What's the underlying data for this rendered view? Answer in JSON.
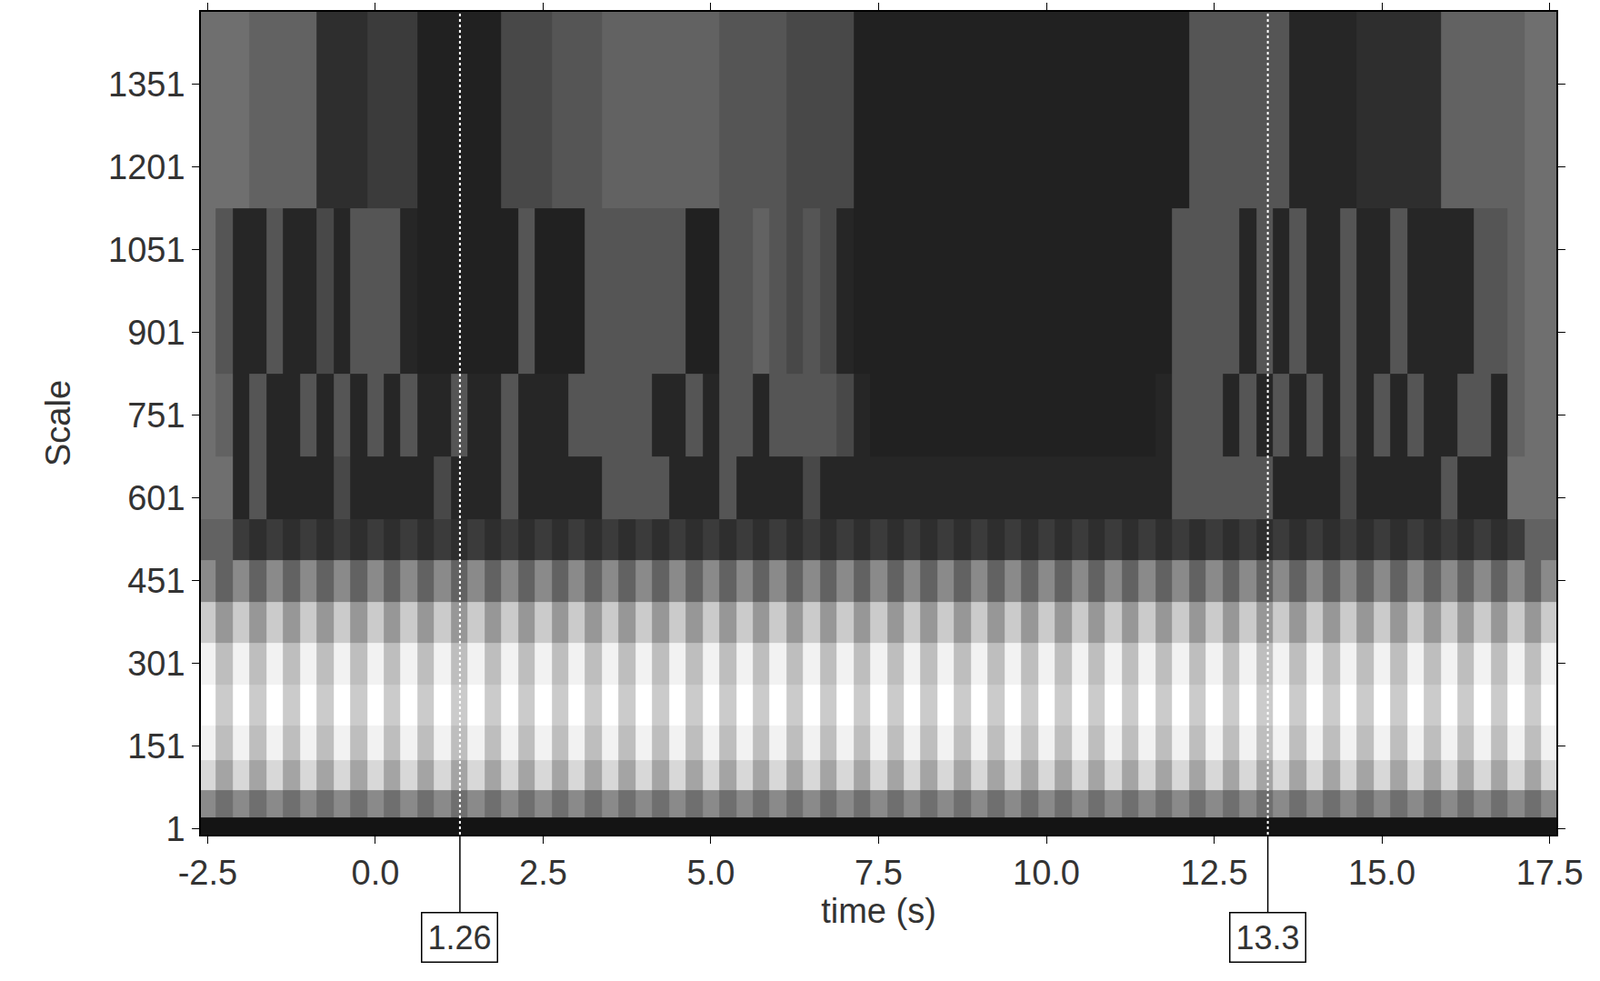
{
  "chart_data": {
    "type": "heatmap",
    "x_label": "time (s)",
    "y_label": "Scale",
    "x": [
      -2.5,
      -2.25,
      -2,
      -1.75,
      -1.5,
      -1.25,
      -1,
      -0.75,
      -0.5,
      -0.25,
      0,
      0.25,
      0.5,
      0.75,
      1,
      1.25,
      1.5,
      1.75,
      2,
      2.25,
      2.5,
      2.75,
      3,
      3.25,
      3.5,
      3.75,
      4,
      4.25,
      4.5,
      4.75,
      5,
      5.25,
      5.5,
      5.75,
      6,
      6.25,
      6.5,
      6.75,
      7,
      7.25,
      7.5,
      7.75,
      8,
      8.25,
      8.5,
      8.75,
      9,
      9.25,
      9.5,
      9.75,
      10,
      10.25,
      10.5,
      10.75,
      11,
      11.25,
      11.5,
      11.75,
      12,
      12.25,
      12.5,
      12.75,
      13,
      13.25,
      13.5,
      13.75,
      14,
      14.25,
      14.5,
      14.75,
      15,
      15.25,
      15.5,
      15.75,
      16,
      16.25,
      16.5,
      16.75,
      17,
      17.25,
      17.5
    ],
    "y": [
      1,
      40,
      100,
      150,
      225,
      300,
      375,
      450,
      525,
      600,
      750,
      900,
      1050,
      1200,
      1350,
      1450
    ],
    "z": [
      [
        0.05,
        0.05,
        0.05,
        0.05,
        0.05,
        0.05,
        0.05,
        0.05,
        0.05,
        0.05,
        0.05,
        0.05,
        0.05,
        0.05,
        0.05,
        0.05,
        0.05,
        0.05,
        0.05,
        0.05,
        0.05,
        0.05,
        0.05,
        0.05,
        0.05,
        0.05,
        0.05,
        0.05,
        0.05,
        0.05,
        0.05,
        0.05,
        0.05,
        0.05,
        0.05,
        0.05,
        0.05,
        0.05,
        0.05,
        0.05,
        0.05,
        0.05,
        0.05,
        0.05,
        0.05,
        0.05,
        0.05,
        0.05,
        0.05,
        0.05,
        0.05,
        0.05,
        0.05,
        0.05,
        0.05,
        0.05,
        0.05,
        0.05,
        0.05,
        0.05,
        0.05,
        0.05,
        0.05,
        0.05,
        0.05,
        0.05,
        0.05,
        0.05,
        0.05,
        0.05,
        0.05,
        0.05,
        0.05,
        0.05,
        0.05,
        0.05,
        0.05,
        0.05,
        0.05,
        0.05,
        0.05
      ],
      [
        0.5,
        0.4,
        0.5,
        0.4,
        0.5,
        0.4,
        0.5,
        0.4,
        0.5,
        0.4,
        0.5,
        0.4,
        0.5,
        0.4,
        0.5,
        0.4,
        0.5,
        0.4,
        0.5,
        0.4,
        0.5,
        0.4,
        0.5,
        0.4,
        0.5,
        0.4,
        0.5,
        0.4,
        0.5,
        0.4,
        0.5,
        0.4,
        0.5,
        0.4,
        0.5,
        0.4,
        0.5,
        0.4,
        0.5,
        0.4,
        0.5,
        0.4,
        0.5,
        0.4,
        0.5,
        0.4,
        0.5,
        0.4,
        0.5,
        0.4,
        0.5,
        0.4,
        0.5,
        0.4,
        0.5,
        0.4,
        0.5,
        0.4,
        0.5,
        0.4,
        0.5,
        0.4,
        0.5,
        0.4,
        0.5,
        0.4,
        0.5,
        0.4,
        0.5,
        0.4,
        0.5,
        0.4,
        0.5,
        0.4,
        0.5,
        0.4,
        0.5,
        0.4,
        0.5,
        0.4,
        0.5
      ],
      [
        0.8,
        0.6,
        0.8,
        0.6,
        0.8,
        0.6,
        0.8,
        0.6,
        0.8,
        0.6,
        0.8,
        0.6,
        0.8,
        0.6,
        0.8,
        0.6,
        0.8,
        0.6,
        0.8,
        0.6,
        0.8,
        0.6,
        0.8,
        0.6,
        0.8,
        0.6,
        0.8,
        0.6,
        0.8,
        0.6,
        0.8,
        0.6,
        0.8,
        0.6,
        0.8,
        0.6,
        0.8,
        0.6,
        0.8,
        0.6,
        0.8,
        0.6,
        0.8,
        0.6,
        0.8,
        0.6,
        0.8,
        0.6,
        0.8,
        0.6,
        0.8,
        0.6,
        0.8,
        0.6,
        0.8,
        0.6,
        0.8,
        0.6,
        0.8,
        0.6,
        0.8,
        0.6,
        0.8,
        0.6,
        0.8,
        0.6,
        0.8,
        0.6,
        0.8,
        0.6,
        0.8,
        0.6,
        0.8,
        0.6,
        0.8,
        0.6,
        0.8,
        0.6,
        0.8,
        0.6,
        0.8
      ],
      [
        0.9,
        0.7,
        0.9,
        0.7,
        0.9,
        0.7,
        0.9,
        0.7,
        0.9,
        0.7,
        0.9,
        0.7,
        0.9,
        0.7,
        0.9,
        0.7,
        0.9,
        0.7,
        0.9,
        0.7,
        0.9,
        0.7,
        0.9,
        0.7,
        0.9,
        0.7,
        0.9,
        0.7,
        0.9,
        0.7,
        0.9,
        0.7,
        0.9,
        0.7,
        0.9,
        0.7,
        0.9,
        0.7,
        0.9,
        0.7,
        0.9,
        0.7,
        0.9,
        0.7,
        0.9,
        0.7,
        0.9,
        0.7,
        0.9,
        0.7,
        0.9,
        0.7,
        0.9,
        0.7,
        0.9,
        0.7,
        0.9,
        0.7,
        0.9,
        0.7,
        0.9,
        0.7,
        0.9,
        0.7,
        0.9,
        0.7,
        0.9,
        0.7,
        0.9,
        0.7,
        0.9,
        0.7,
        0.9,
        0.7,
        0.9,
        0.7,
        0.9,
        0.7,
        0.9,
        0.7,
        0.9
      ],
      [
        0.95,
        0.75,
        0.95,
        0.75,
        0.95,
        0.75,
        0.95,
        0.75,
        0.95,
        0.75,
        0.95,
        0.75,
        0.95,
        0.75,
        0.95,
        0.75,
        0.95,
        0.75,
        0.95,
        0.75,
        0.95,
        0.75,
        0.95,
        0.75,
        0.95,
        0.75,
        0.95,
        0.75,
        0.95,
        0.75,
        0.95,
        0.75,
        0.95,
        0.75,
        0.95,
        0.75,
        0.95,
        0.75,
        0.95,
        0.75,
        0.95,
        0.75,
        0.95,
        0.75,
        0.95,
        0.75,
        0.95,
        0.75,
        0.95,
        0.75,
        0.95,
        0.75,
        0.95,
        0.75,
        0.95,
        0.75,
        0.95,
        0.75,
        0.95,
        0.75,
        0.95,
        0.75,
        0.95,
        0.75,
        0.95,
        0.75,
        0.95,
        0.75,
        0.95,
        0.75,
        0.95,
        0.75,
        0.95,
        0.75,
        0.95,
        0.75,
        0.95,
        0.75,
        0.95,
        0.75,
        0.95
      ],
      [
        0.9,
        0.7,
        0.9,
        0.7,
        0.9,
        0.7,
        0.9,
        0.7,
        0.9,
        0.7,
        0.9,
        0.7,
        0.9,
        0.7,
        0.9,
        0.7,
        0.9,
        0.7,
        0.9,
        0.7,
        0.9,
        0.7,
        0.9,
        0.7,
        0.9,
        0.7,
        0.9,
        0.7,
        0.9,
        0.7,
        0.9,
        0.7,
        0.9,
        0.7,
        0.9,
        0.7,
        0.9,
        0.7,
        0.9,
        0.7,
        0.9,
        0.7,
        0.9,
        0.7,
        0.9,
        0.7,
        0.9,
        0.7,
        0.9,
        0.7,
        0.9,
        0.7,
        0.9,
        0.7,
        0.9,
        0.7,
        0.9,
        0.7,
        0.9,
        0.7,
        0.9,
        0.7,
        0.9,
        0.7,
        0.9,
        0.7,
        0.9,
        0.7,
        0.9,
        0.7,
        0.9,
        0.7,
        0.9,
        0.7,
        0.9,
        0.7,
        0.9,
        0.7,
        0.9,
        0.7,
        0.9
      ],
      [
        0.75,
        0.55,
        0.75,
        0.55,
        0.75,
        0.55,
        0.75,
        0.55,
        0.75,
        0.55,
        0.75,
        0.55,
        0.75,
        0.55,
        0.75,
        0.55,
        0.75,
        0.55,
        0.75,
        0.55,
        0.75,
        0.55,
        0.75,
        0.55,
        0.75,
        0.55,
        0.75,
        0.55,
        0.75,
        0.55,
        0.75,
        0.55,
        0.75,
        0.55,
        0.75,
        0.55,
        0.75,
        0.55,
        0.75,
        0.55,
        0.75,
        0.55,
        0.75,
        0.55,
        0.75,
        0.55,
        0.75,
        0.55,
        0.75,
        0.55,
        0.75,
        0.55,
        0.75,
        0.55,
        0.75,
        0.55,
        0.75,
        0.55,
        0.75,
        0.55,
        0.75,
        0.55,
        0.75,
        0.55,
        0.75,
        0.55,
        0.75,
        0.55,
        0.75,
        0.55,
        0.75,
        0.55,
        0.75,
        0.55,
        0.75,
        0.55,
        0.75,
        0.55,
        0.75,
        0.55,
        0.75
      ],
      [
        0.5,
        0.35,
        0.5,
        0.35,
        0.5,
        0.35,
        0.5,
        0.35,
        0.5,
        0.35,
        0.5,
        0.35,
        0.5,
        0.35,
        0.5,
        0.35,
        0.5,
        0.35,
        0.5,
        0.35,
        0.5,
        0.35,
        0.5,
        0.35,
        0.5,
        0.35,
        0.5,
        0.35,
        0.5,
        0.35,
        0.5,
        0.35,
        0.5,
        0.35,
        0.5,
        0.35,
        0.5,
        0.35,
        0.5,
        0.35,
        0.5,
        0.35,
        0.5,
        0.35,
        0.5,
        0.35,
        0.5,
        0.35,
        0.5,
        0.35,
        0.5,
        0.35,
        0.5,
        0.35,
        0.5,
        0.35,
        0.5,
        0.35,
        0.5,
        0.35,
        0.5,
        0.35,
        0.5,
        0.35,
        0.5,
        0.35,
        0.5,
        0.35,
        0.5,
        0.35,
        0.5,
        0.35,
        0.5,
        0.35,
        0.5,
        0.35,
        0.5,
        0.35,
        0.5,
        0.35,
        0.5
      ],
      [
        0.35,
        0.35,
        0.2,
        0.15,
        0.2,
        0.15,
        0.2,
        0.15,
        0.2,
        0.15,
        0.2,
        0.15,
        0.2,
        0.15,
        0.2,
        0.15,
        0.2,
        0.15,
        0.2,
        0.15,
        0.2,
        0.15,
        0.2,
        0.15,
        0.2,
        0.15,
        0.2,
        0.15,
        0.2,
        0.15,
        0.2,
        0.15,
        0.2,
        0.15,
        0.2,
        0.15,
        0.2,
        0.15,
        0.2,
        0.15,
        0.2,
        0.15,
        0.2,
        0.15,
        0.2,
        0.15,
        0.2,
        0.15,
        0.2,
        0.15,
        0.2,
        0.15,
        0.2,
        0.15,
        0.2,
        0.15,
        0.2,
        0.15,
        0.2,
        0.15,
        0.2,
        0.15,
        0.2,
        0.15,
        0.2,
        0.15,
        0.2,
        0.15,
        0.2,
        0.15,
        0.2,
        0.15,
        0.2,
        0.15,
        0.2,
        0.15,
        0.2,
        0.15,
        0.2,
        0.35,
        0.35
      ],
      [
        0.4,
        0.4,
        0.12,
        0.3,
        0.12,
        0.12,
        0.12,
        0.12,
        0.25,
        0.12,
        0.12,
        0.12,
        0.12,
        0.12,
        0.25,
        0.12,
        0.12,
        0.12,
        0.3,
        0.12,
        0.12,
        0.12,
        0.12,
        0.12,
        0.3,
        0.3,
        0.3,
        0.3,
        0.12,
        0.12,
        0.12,
        0.3,
        0.12,
        0.12,
        0.12,
        0.12,
        0.25,
        0.12,
        0.12,
        0.12,
        0.12,
        0.12,
        0.12,
        0.12,
        0.12,
        0.12,
        0.12,
        0.12,
        0.12,
        0.12,
        0.12,
        0.12,
        0.12,
        0.12,
        0.12,
        0.12,
        0.12,
        0.12,
        0.3,
        0.3,
        0.3,
        0.3,
        0.3,
        0.3,
        0.12,
        0.12,
        0.12,
        0.12,
        0.25,
        0.12,
        0.12,
        0.12,
        0.12,
        0.12,
        0.3,
        0.12,
        0.12,
        0.12,
        0.4,
        0.4,
        0.4
      ],
      [
        0.4,
        0.35,
        0.12,
        0.3,
        0.12,
        0.12,
        0.3,
        0.12,
        0.3,
        0.12,
        0.3,
        0.12,
        0.3,
        0.12,
        0.12,
        0.3,
        0.12,
        0.12,
        0.3,
        0.12,
        0.12,
        0.12,
        0.3,
        0.3,
        0.3,
        0.3,
        0.3,
        0.12,
        0.12,
        0.3,
        0.12,
        0.3,
        0.3,
        0.12,
        0.3,
        0.3,
        0.3,
        0.3,
        0.25,
        0.12,
        0.1,
        0.1,
        0.1,
        0.1,
        0.1,
        0.1,
        0.1,
        0.1,
        0.1,
        0.1,
        0.1,
        0.1,
        0.1,
        0.1,
        0.1,
        0.1,
        0.1,
        0.12,
        0.3,
        0.3,
        0.3,
        0.12,
        0.3,
        0.12,
        0.3,
        0.12,
        0.3,
        0.12,
        0.3,
        0.12,
        0.3,
        0.12,
        0.3,
        0.12,
        0.12,
        0.3,
        0.3,
        0.12,
        0.35,
        0.4,
        0.4
      ],
      [
        0.4,
        0.3,
        0.12,
        0.12,
        0.3,
        0.12,
        0.12,
        0.25,
        0.12,
        0.3,
        0.3,
        0.3,
        0.12,
        0.1,
        0.1,
        0.1,
        0.1,
        0.1,
        0.1,
        0.3,
        0.1,
        0.1,
        0.1,
        0.3,
        0.3,
        0.3,
        0.3,
        0.3,
        0.3,
        0.1,
        0.1,
        0.3,
        0.3,
        0.35,
        0.3,
        0.25,
        0.3,
        0.25,
        0.12,
        0.1,
        0.1,
        0.1,
        0.1,
        0.1,
        0.1,
        0.1,
        0.1,
        0.1,
        0.1,
        0.1,
        0.1,
        0.1,
        0.1,
        0.1,
        0.1,
        0.1,
        0.1,
        0.1,
        0.3,
        0.3,
        0.3,
        0.3,
        0.12,
        0.3,
        0.12,
        0.3,
        0.12,
        0.12,
        0.3,
        0.12,
        0.12,
        0.3,
        0.12,
        0.12,
        0.12,
        0.12,
        0.3,
        0.3,
        0.35,
        0.4,
        0.4
      ],
      [
        0.4,
        0.3,
        0.12,
        0.12,
        0.3,
        0.12,
        0.12,
        0.25,
        0.12,
        0.3,
        0.3,
        0.3,
        0.12,
        0.1,
        0.1,
        0.1,
        0.1,
        0.1,
        0.1,
        0.3,
        0.1,
        0.1,
        0.1,
        0.3,
        0.3,
        0.3,
        0.3,
        0.3,
        0.3,
        0.1,
        0.1,
        0.3,
        0.3,
        0.35,
        0.3,
        0.25,
        0.3,
        0.25,
        0.12,
        0.1,
        0.1,
        0.1,
        0.1,
        0.1,
        0.1,
        0.1,
        0.1,
        0.1,
        0.1,
        0.1,
        0.1,
        0.1,
        0.1,
        0.1,
        0.1,
        0.1,
        0.1,
        0.1,
        0.3,
        0.3,
        0.3,
        0.3,
        0.12,
        0.3,
        0.12,
        0.3,
        0.12,
        0.12,
        0.3,
        0.12,
        0.12,
        0.3,
        0.12,
        0.12,
        0.12,
        0.12,
        0.3,
        0.3,
        0.35,
        0.4,
        0.4
      ],
      [
        0.4,
        0.4,
        0.4,
        0.35,
        0.35,
        0.35,
        0.35,
        0.15,
        0.15,
        0.15,
        0.2,
        0.2,
        0.2,
        0.1,
        0.1,
        0.1,
        0.1,
        0.1,
        0.25,
        0.25,
        0.25,
        0.3,
        0.3,
        0.3,
        0.35,
        0.35,
        0.35,
        0.35,
        0.35,
        0.35,
        0.35,
        0.3,
        0.3,
        0.3,
        0.3,
        0.25,
        0.25,
        0.25,
        0.25,
        0.1,
        0.1,
        0.1,
        0.1,
        0.1,
        0.1,
        0.1,
        0.1,
        0.1,
        0.1,
        0.1,
        0.1,
        0.1,
        0.1,
        0.1,
        0.1,
        0.1,
        0.1,
        0.1,
        0.1,
        0.3,
        0.3,
        0.3,
        0.3,
        0.3,
        0.3,
        0.12,
        0.12,
        0.12,
        0.12,
        0.15,
        0.15,
        0.15,
        0.15,
        0.15,
        0.35,
        0.35,
        0.35,
        0.35,
        0.35,
        0.4,
        0.4
      ],
      [
        0.4,
        0.4,
        0.4,
        0.35,
        0.35,
        0.35,
        0.35,
        0.15,
        0.15,
        0.15,
        0.2,
        0.2,
        0.2,
        0.1,
        0.1,
        0.1,
        0.1,
        0.1,
        0.25,
        0.25,
        0.25,
        0.3,
        0.3,
        0.3,
        0.35,
        0.35,
        0.35,
        0.35,
        0.35,
        0.35,
        0.35,
        0.3,
        0.3,
        0.3,
        0.3,
        0.25,
        0.25,
        0.25,
        0.25,
        0.1,
        0.1,
        0.1,
        0.1,
        0.1,
        0.1,
        0.1,
        0.1,
        0.1,
        0.1,
        0.1,
        0.1,
        0.1,
        0.1,
        0.1,
        0.1,
        0.1,
        0.1,
        0.1,
        0.1,
        0.3,
        0.3,
        0.3,
        0.3,
        0.3,
        0.3,
        0.12,
        0.12,
        0.12,
        0.12,
        0.15,
        0.15,
        0.15,
        0.15,
        0.15,
        0.35,
        0.35,
        0.35,
        0.35,
        0.35,
        0.4,
        0.4
      ],
      [
        0.4,
        0.4,
        0.4,
        0.35,
        0.35,
        0.35,
        0.35,
        0.15,
        0.15,
        0.15,
        0.2,
        0.2,
        0.2,
        0.1,
        0.1,
        0.1,
        0.1,
        0.1,
        0.25,
        0.25,
        0.25,
        0.3,
        0.3,
        0.3,
        0.35,
        0.35,
        0.35,
        0.35,
        0.35,
        0.35,
        0.35,
        0.3,
        0.3,
        0.3,
        0.3,
        0.25,
        0.25,
        0.25,
        0.25,
        0.1,
        0.1,
        0.1,
        0.1,
        0.1,
        0.1,
        0.1,
        0.1,
        0.1,
        0.1,
        0.1,
        0.1,
        0.1,
        0.1,
        0.1,
        0.1,
        0.1,
        0.1,
        0.1,
        0.1,
        0.3,
        0.3,
        0.3,
        0.3,
        0.3,
        0.3,
        0.12,
        0.12,
        0.12,
        0.12,
        0.15,
        0.15,
        0.15,
        0.15,
        0.15,
        0.35,
        0.35,
        0.35,
        0.35,
        0.35,
        0.4,
        0.4
      ]
    ],
    "xlim": [
      -2.6,
      17.6
    ],
    "ylim": [
      -10,
      1482
    ],
    "xticks": [
      -2.5,
      {
        "value": 0,
        "label": "0.0"
      },
      2.5,
      {
        "value": 5,
        "label": "5.0"
      },
      7.5,
      {
        "value": 10,
        "label": "10.0"
      },
      12.5,
      {
        "value": 15,
        "label": "15.0"
      },
      17.5
    ],
    "yticks": [
      1,
      151,
      301,
      451,
      601,
      751,
      901,
      1051,
      1201,
      1351
    ],
    "annotations": [
      {
        "x": 1.26,
        "text": "1.26"
      },
      {
        "x": 13.3,
        "text": "13.3"
      }
    ]
  }
}
